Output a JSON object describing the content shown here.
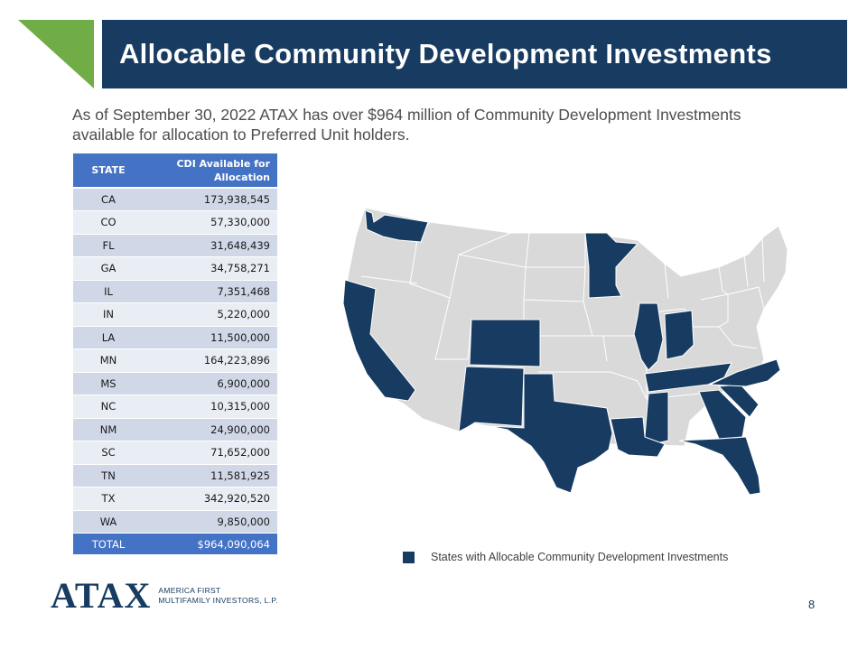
{
  "header": {
    "title": "Allocable Community Development Investments",
    "accent_color": "#70ad47",
    "bar_color": "#173b61"
  },
  "intro": {
    "line1": "As of September 30, 2022 ATAX has over $964 million of Community Development Investments",
    "line2": "available for allocation to Preferred Unit holders."
  },
  "table": {
    "headers": {
      "state": "STATE",
      "alloc_line1": "CDI Available for",
      "alloc_line2": "Allocation"
    },
    "rows": [
      {
        "state": "CA",
        "amount": "173,938,545"
      },
      {
        "state": "CO",
        "amount": "57,330,000"
      },
      {
        "state": "FL",
        "amount": "31,648,439"
      },
      {
        "state": "GA",
        "amount": "34,758,271"
      },
      {
        "state": "IL",
        "amount": "7,351,468"
      },
      {
        "state": "IN",
        "amount": "5,220,000"
      },
      {
        "state": "LA",
        "amount": "11,500,000"
      },
      {
        "state": "MN",
        "amount": "164,223,896"
      },
      {
        "state": "MS",
        "amount": "6,900,000"
      },
      {
        "state": "NC",
        "amount": "10,315,000"
      },
      {
        "state": "NM",
        "amount": "24,900,000"
      },
      {
        "state": "SC",
        "amount": "71,652,000"
      },
      {
        "state": "TN",
        "amount": "11,581,925"
      },
      {
        "state": "TX",
        "amount": "342,920,520"
      },
      {
        "state": "WA",
        "amount": "9,850,000"
      }
    ],
    "total": {
      "label": "TOTAL",
      "amount": "$964,090,064"
    }
  },
  "map": {
    "highlight_color": "#173b61",
    "base_color": "#d9d9d9",
    "highlighted_states": [
      "WA",
      "CA",
      "CO",
      "NM",
      "TX",
      "MN",
      "IL",
      "IN",
      "LA",
      "MS",
      "TN",
      "GA",
      "SC",
      "NC",
      "FL"
    ]
  },
  "legend": {
    "label": "States with Allocable Community Development Investments"
  },
  "footer": {
    "logo_text": "ATAX",
    "tagline_line1": "AMERICA FIRST",
    "tagline_line2": "MULTIFAMILY INVESTORS, L.P.",
    "page_number": "8"
  }
}
